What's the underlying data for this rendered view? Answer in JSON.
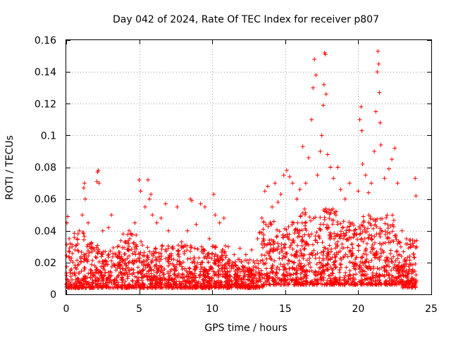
{
  "chart_data": {
    "type": "scatter",
    "title": "Day 042 of 2024, Rate Of TEC Index for receiver p807",
    "xlabel": "GPS time / hours",
    "ylabel": "ROTI / TECUs",
    "xlim": [
      0,
      25
    ],
    "ylim": [
      0,
      0.16
    ],
    "x_ticks": [
      0,
      5,
      10,
      15,
      20,
      25
    ],
    "x_tick_labels": [
      "0",
      "5",
      "10",
      "15",
      "20",
      "25"
    ],
    "y_ticks": [
      0,
      0.02,
      0.04,
      0.06,
      0.08,
      0.1,
      0.12,
      0.14,
      0.16
    ],
    "y_tick_labels": [
      "0",
      "0.02",
      "0.04",
      "0.06",
      "0.08",
      "0.1",
      "0.12",
      "0.14",
      "0.16"
    ],
    "grid": true,
    "marker": "+",
    "color": "#ff0000",
    "series": [
      {
        "name": "ROTI",
        "points": [
          [
            0.05,
            0.045
          ],
          [
            0.1,
            0.049
          ],
          [
            0.2,
            0.035
          ],
          [
            0.4,
            0.03
          ],
          [
            0.6,
            0.028
          ],
          [
            0.9,
            0.04
          ],
          [
            1.1,
            0.05
          ],
          [
            1.2,
            0.067
          ],
          [
            1.25,
            0.07
          ],
          [
            1.3,
            0.06
          ],
          [
            1.5,
            0.045
          ],
          [
            1.7,
            0.032
          ],
          [
            2.1,
            0.071
          ],
          [
            2.15,
            0.077
          ],
          [
            2.2,
            0.078
          ],
          [
            2.25,
            0.07
          ],
          [
            2.5,
            0.04
          ],
          [
            2.9,
            0.042
          ],
          [
            3.1,
            0.05
          ],
          [
            3.5,
            0.03
          ],
          [
            3.9,
            0.038
          ],
          [
            4.3,
            0.04
          ],
          [
            4.7,
            0.045
          ],
          [
            5.0,
            0.072
          ],
          [
            5.1,
            0.065
          ],
          [
            5.4,
            0.055
          ],
          [
            5.6,
            0.072
          ],
          [
            5.7,
            0.06
          ],
          [
            5.8,
            0.063
          ],
          [
            5.9,
            0.05
          ],
          [
            6.2,
            0.045
          ],
          [
            6.5,
            0.048
          ],
          [
            6.8,
            0.057
          ],
          [
            7.0,
            0.04
          ],
          [
            7.3,
            0.03
          ],
          [
            7.6,
            0.055
          ],
          [
            7.9,
            0.033
          ],
          [
            8.3,
            0.04
          ],
          [
            8.5,
            0.06
          ],
          [
            8.6,
            0.059
          ],
          [
            8.9,
            0.044
          ],
          [
            9.2,
            0.057
          ],
          [
            9.5,
            0.055
          ],
          [
            9.8,
            0.035
          ],
          [
            10.1,
            0.063
          ],
          [
            10.2,
            0.05
          ],
          [
            10.5,
            0.045
          ],
          [
            10.8,
            0.048
          ],
          [
            11.1,
            0.03
          ],
          [
            11.5,
            0.025
          ],
          [
            11.9,
            0.029
          ],
          [
            12.3,
            0.025
          ],
          [
            12.7,
            0.028
          ],
          [
            13.1,
            0.035
          ],
          [
            13.4,
            0.048
          ],
          [
            13.6,
            0.065
          ],
          [
            13.8,
            0.068
          ],
          [
            14.1,
            0.055
          ],
          [
            14.3,
            0.07
          ],
          [
            14.5,
            0.058
          ],
          [
            14.7,
            0.063
          ],
          [
            14.9,
            0.075
          ],
          [
            15.1,
            0.078
          ],
          [
            15.3,
            0.074
          ],
          [
            15.5,
            0.07
          ],
          [
            15.8,
            0.06
          ],
          [
            16.0,
            0.066
          ],
          [
            16.2,
            0.093
          ],
          [
            16.4,
            0.07
          ],
          [
            16.6,
            0.086
          ],
          [
            16.8,
            0.11
          ],
          [
            16.9,
            0.13
          ],
          [
            17.0,
            0.148
          ],
          [
            17.1,
            0.138
          ],
          [
            17.2,
            0.075
          ],
          [
            17.4,
            0.09
          ],
          [
            17.5,
            0.1
          ],
          [
            17.6,
            0.119
          ],
          [
            17.65,
            0.132
          ],
          [
            17.7,
            0.152
          ],
          [
            17.75,
            0.151
          ],
          [
            17.8,
            0.126
          ],
          [
            17.9,
            0.088
          ],
          [
            18.1,
            0.08
          ],
          [
            18.3,
            0.073
          ],
          [
            18.6,
            0.08
          ],
          [
            18.8,
            0.066
          ],
          [
            19.1,
            0.06
          ],
          [
            19.4,
            0.07
          ],
          [
            19.7,
            0.04
          ],
          [
            20.0,
            0.065
          ],
          [
            20.1,
            0.11
          ],
          [
            20.2,
            0.118
          ],
          [
            20.25,
            0.103
          ],
          [
            20.3,
            0.082
          ],
          [
            20.5,
            0.075
          ],
          [
            20.7,
            0.064
          ],
          [
            20.9,
            0.07
          ],
          [
            21.1,
            0.09
          ],
          [
            21.2,
            0.115
          ],
          [
            21.3,
            0.14
          ],
          [
            21.35,
            0.153
          ],
          [
            21.4,
            0.145
          ],
          [
            21.45,
            0.127
          ],
          [
            21.5,
            0.108
          ],
          [
            21.55,
            0.094
          ],
          [
            21.8,
            0.073
          ],
          [
            22.1,
            0.079
          ],
          [
            22.3,
            0.085
          ],
          [
            22.5,
            0.092
          ],
          [
            22.7,
            0.07
          ],
          [
            23.0,
            0.04
          ],
          [
            23.3,
            0.035
          ],
          [
            23.6,
            0.03
          ],
          [
            23.9,
            0.073
          ],
          [
            23.95,
            0.062
          ],
          [
            24.0,
            0.03
          ]
        ]
      }
    ]
  }
}
